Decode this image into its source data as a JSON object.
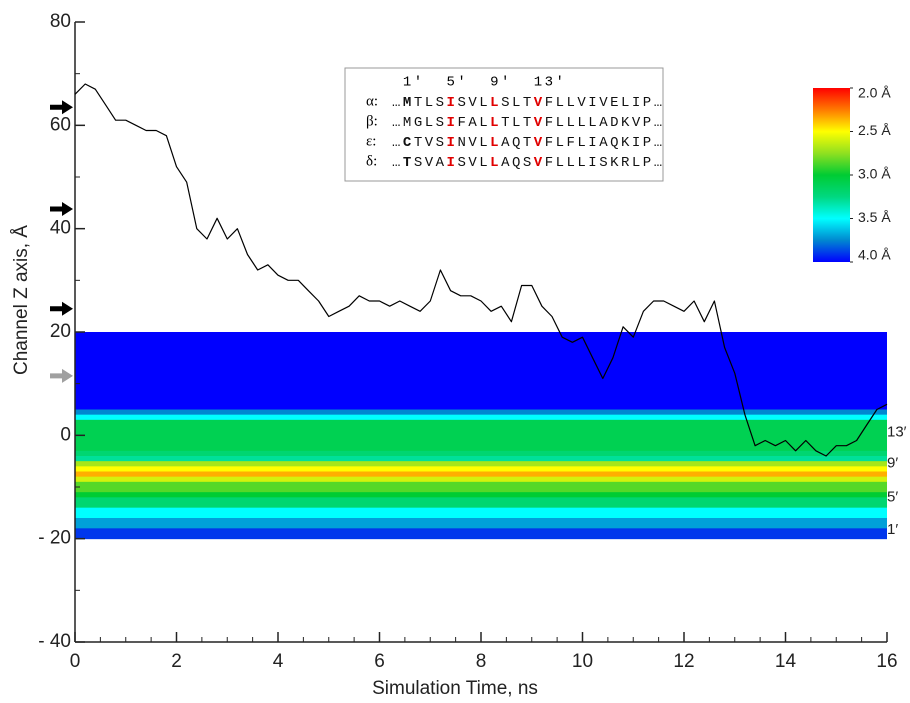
{
  "chart_data": {
    "type": "line",
    "xlabel": "Simulation Time, ns",
    "ylabel": "Channel Z axis, Å",
    "xlim": [
      0,
      16
    ],
    "ylim": [
      -40,
      80
    ],
    "xticks": [
      0,
      2,
      4,
      6,
      8,
      10,
      12,
      14,
      16
    ],
    "x_minor_ticks": [
      0.5,
      1,
      1.5,
      2.5,
      3,
      3.5,
      4.5,
      5,
      5.5,
      6.5,
      7,
      7.5,
      8.5,
      9,
      9.5,
      10.5,
      11,
      11.5,
      12.5,
      13,
      13.5,
      14.5,
      15,
      15.5
    ],
    "yticks": [
      {
        "value": -40,
        "label": "- 40"
      },
      {
        "value": -20,
        "label": "- 20"
      },
      0,
      20,
      40,
      60,
      80
    ],
    "y_minor_ticks": [
      -30,
      -10,
      10,
      30,
      50,
      70
    ],
    "series": [
      {
        "color": "#000000",
        "x": [
          0,
          0.2,
          0.4,
          0.6,
          0.8,
          1,
          1.2,
          1.4,
          1.6,
          1.8,
          2,
          2.2,
          2.4,
          2.6,
          2.8,
          3,
          3.2,
          3.4,
          3.6,
          3.8,
          4,
          4.2,
          4.4,
          4.6,
          4.8,
          5,
          5.2,
          5.4,
          5.6,
          5.8,
          6,
          6.2,
          6.4,
          6.6,
          6.8,
          7,
          7.2,
          7.4,
          7.6,
          7.8,
          8,
          8.2,
          8.4,
          8.6,
          8.8,
          9,
          9.2,
          9.4,
          9.6,
          9.8,
          10,
          10.2,
          10.4,
          10.6,
          10.8,
          11,
          11.2,
          11.4,
          11.6,
          11.8,
          12,
          12.2,
          12.4,
          12.6,
          12.8,
          13,
          13.2,
          13.4,
          13.6,
          13.8,
          14,
          14.2,
          14.4,
          14.6,
          14.8,
          15,
          15.2,
          15.4,
          15.6,
          15.8,
          16
        ],
        "values": [
          66,
          68,
          67,
          64,
          61,
          61,
          60,
          59,
          59,
          58,
          52,
          49,
          40,
          38,
          42,
          38,
          40,
          35,
          32,
          33,
          31,
          30,
          30,
          28,
          26,
          23,
          24,
          25,
          27,
          26,
          26,
          25,
          26,
          25,
          24,
          26,
          32,
          28,
          27,
          27,
          26,
          24,
          25,
          22,
          29,
          29,
          25,
          23,
          19,
          18,
          19,
          15,
          11,
          15,
          21,
          19,
          24,
          26,
          26,
          25,
          24,
          26,
          22,
          26,
          17,
          12,
          4,
          -2,
          -1,
          -2,
          -1,
          -3,
          -1,
          -3,
          -4,
          -2,
          -2,
          -1,
          2,
          5,
          6
        ]
      }
    ],
    "heatmap": {
      "z_edges": [
        20,
        5,
        4,
        3,
        -3,
        -4,
        -5,
        -6,
        -7,
        -8,
        -9,
        -11,
        -12,
        -14,
        -16,
        -18,
        -20
      ],
      "radius": [
        4.0,
        3.75,
        3.5,
        3.1,
        3.2,
        3.3,
        2.7,
        2.5,
        2.35,
        2.6,
        2.85,
        3.0,
        3.2,
        3.5,
        3.7,
        3.9
      ]
    },
    "colorbar": {
      "range": [
        2.0,
        4.0
      ],
      "colors": [
        "#ff0000",
        "#ff7a00",
        "#ffff00",
        "#90e020",
        "#00cc33",
        "#00d880",
        "#00ffff",
        "#0088d0",
        "#0000ff"
      ],
      "ticks": [
        {
          "value": 2.0,
          "label": "2.0 Å"
        },
        {
          "value": 2.5,
          "label": "2.5 Å"
        },
        {
          "value": 3.0,
          "label": "3.0 Å"
        },
        {
          "value": 3.5,
          "label": "3.5 Å"
        },
        {
          "value": 4.0,
          "label": "4.0 Å"
        }
      ]
    },
    "arrows": [
      {
        "z": 63.5,
        "color": "#000000"
      },
      {
        "z": 43.8,
        "color": "#000000"
      },
      {
        "z": 24.5,
        "color": "#000000"
      },
      {
        "z": 11.5,
        "color": "#a0a0a0"
      }
    ],
    "residue_labels": [
      {
        "label": "13′",
        "z": 0.5
      },
      {
        "label": "9′",
        "z": -5.5
      },
      {
        "label": "5′",
        "z": -12
      },
      {
        "label": "1′",
        "z": -18.3
      }
    ],
    "inset": {
      "header": [
        "1′",
        "5′",
        "9′",
        "13′"
      ],
      "rows": [
        {
          "label": "α:",
          "segments": [
            "…",
            "M",
            "TLS",
            "I",
            "SVL",
            "L",
            "SLT",
            "V",
            "FLLVIVELIP…"
          ],
          "styles": [
            "plain",
            "bold",
            "plain",
            "red",
            "plain",
            "red",
            "plain",
            "red",
            "plain"
          ]
        },
        {
          "label": "β:",
          "segments": [
            "…",
            "M",
            "GLS",
            "I",
            "FAL",
            "L",
            "TLT",
            "V",
            "FLLLLADKVP…"
          ],
          "styles": [
            "plain",
            "plain",
            "plain",
            "red",
            "plain",
            "red",
            "plain",
            "red",
            "plain"
          ]
        },
        {
          "label": "ε:",
          "segments": [
            "…",
            "C",
            "TVS",
            "I",
            "NVL",
            "L",
            "AQT",
            "V",
            "FLFLIAQKIP…"
          ],
          "styles": [
            "plain",
            "bold",
            "plain",
            "red",
            "plain",
            "red",
            "plain",
            "red",
            "plain"
          ]
        },
        {
          "label": "δ:",
          "segments": [
            "…",
            "T",
            "SVA",
            "I",
            "SVL",
            "L",
            "AQS",
            "V",
            "FLLLISKRLP…"
          ],
          "styles": [
            "plain",
            "bold",
            "plain",
            "red",
            "plain",
            "red",
            "plain",
            "red",
            "plain"
          ]
        }
      ]
    }
  }
}
